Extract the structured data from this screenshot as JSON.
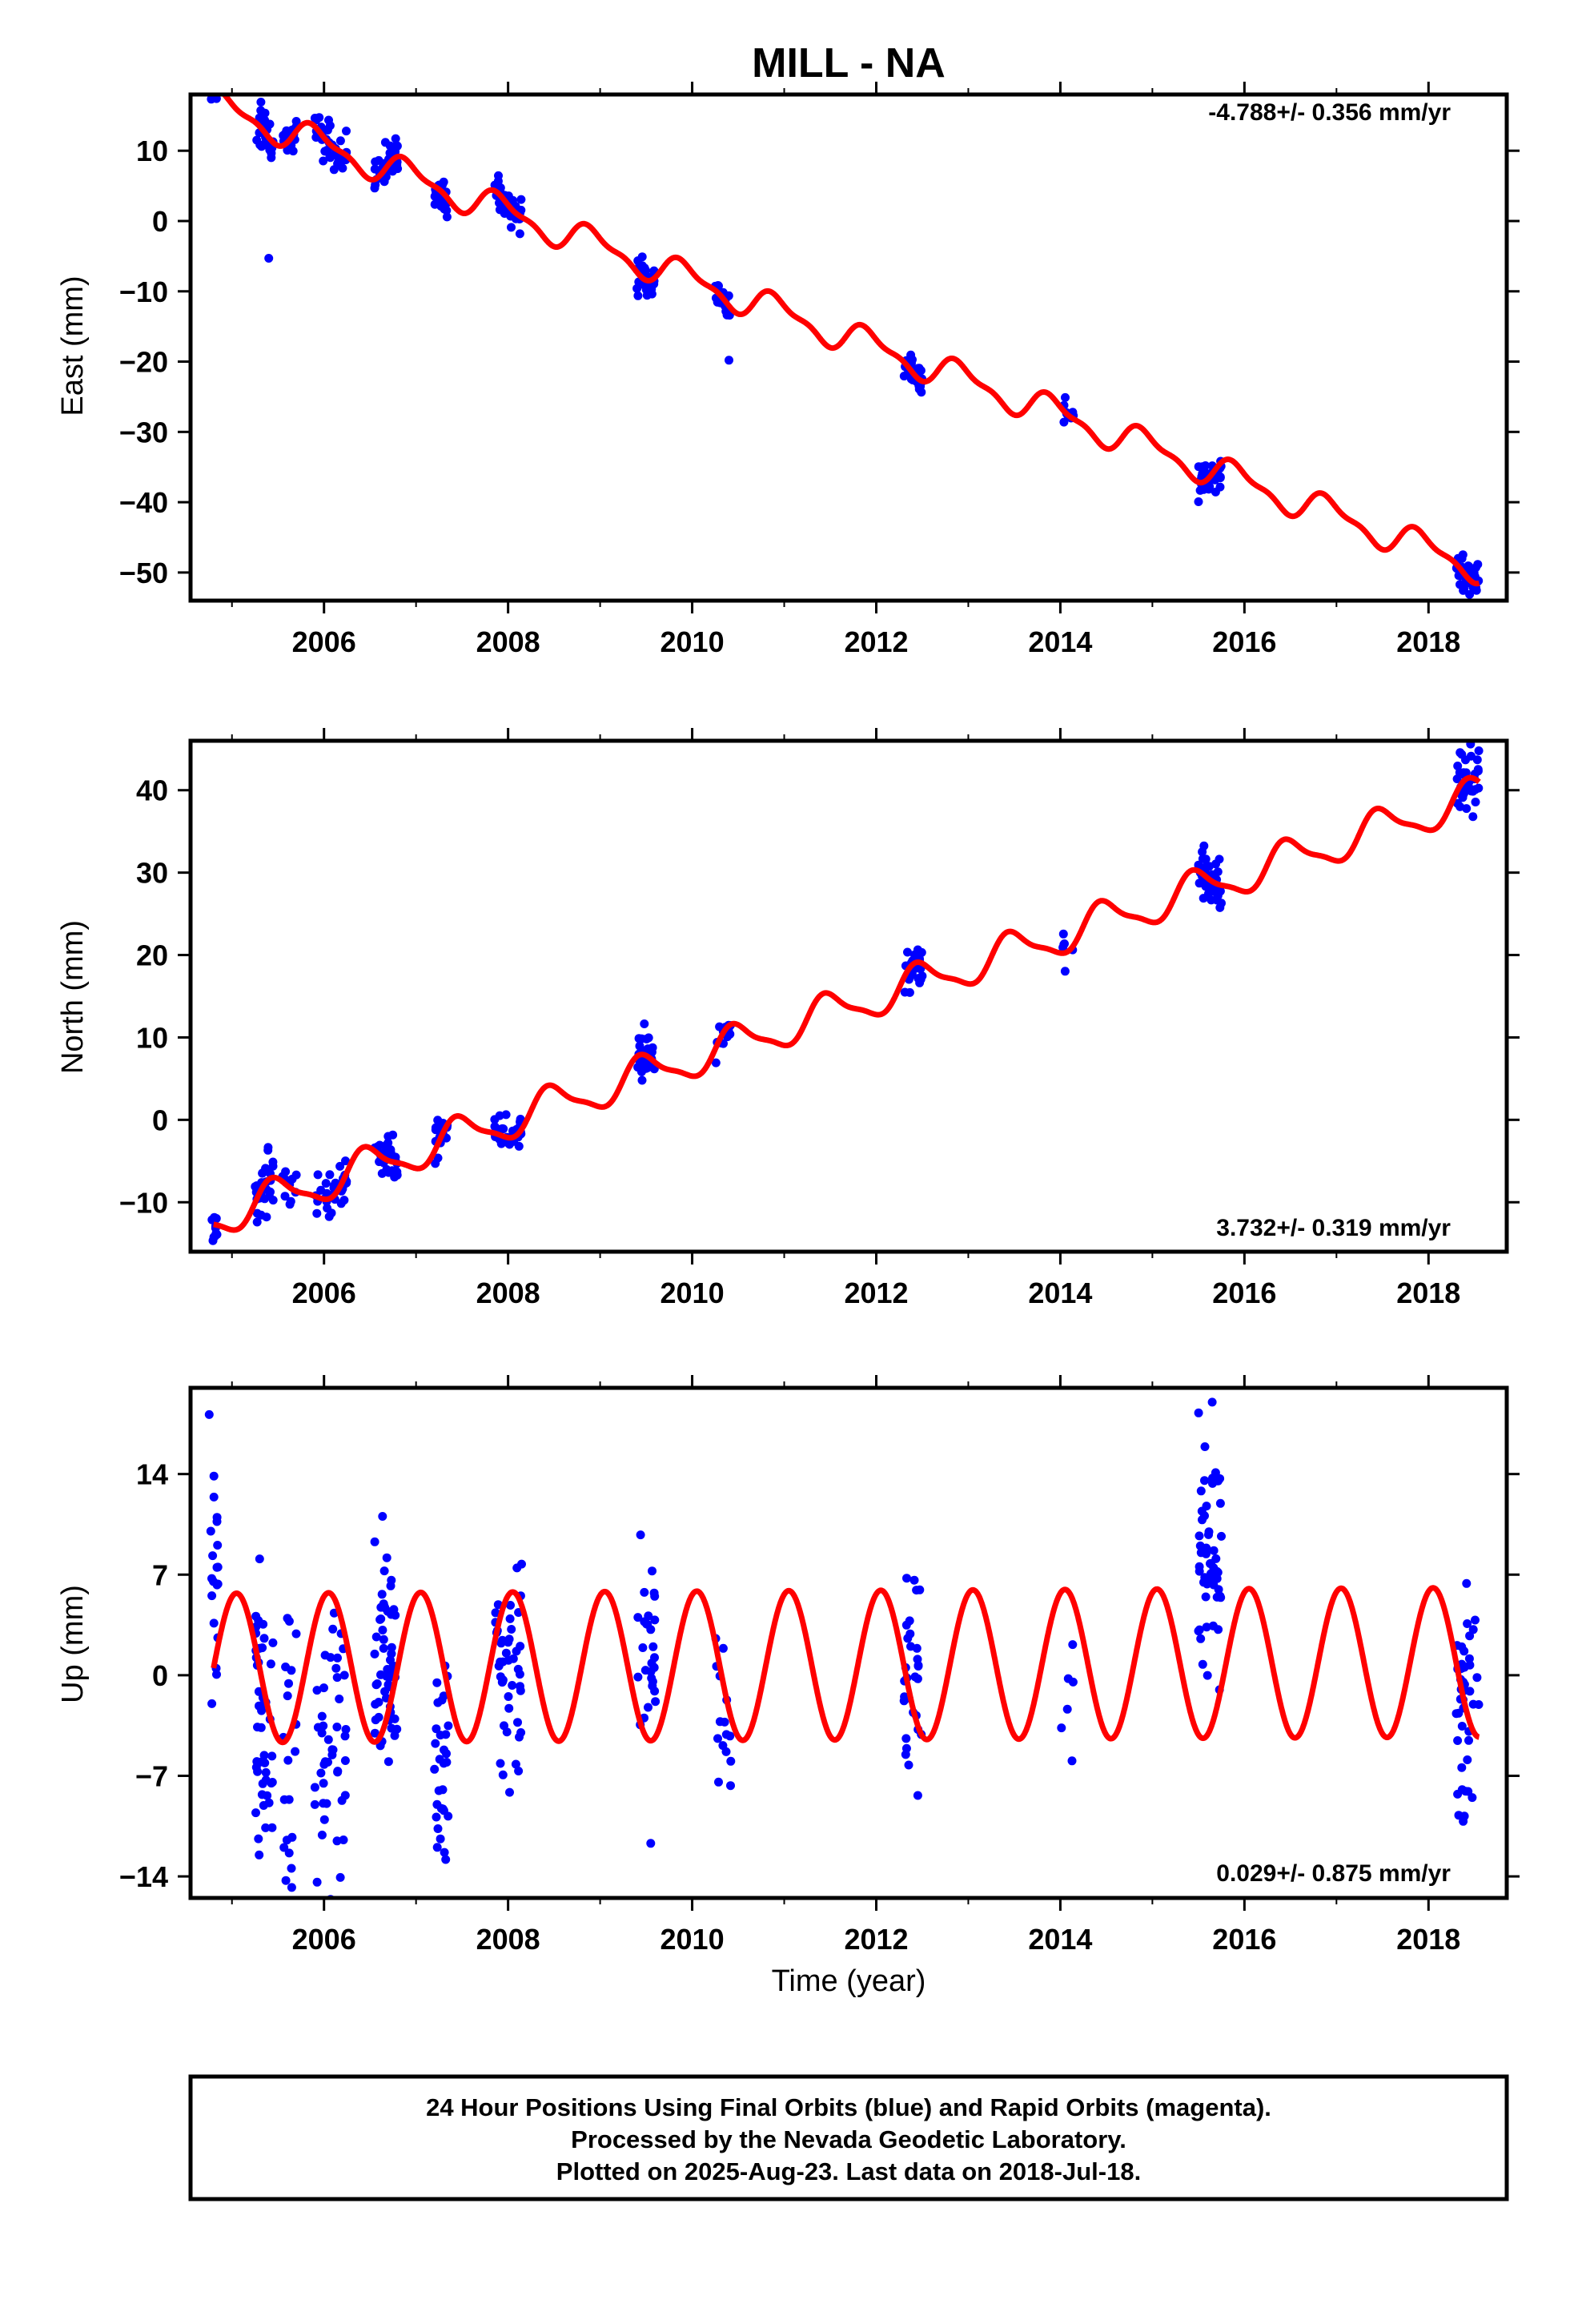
{
  "title": "MILL - NA",
  "x_axis_label": "Time (year)",
  "footer": {
    "lines": [
      "24 Hour Positions Using Final Orbits (blue) and Rapid Orbits (magenta).",
      "Processed by the Nevada Geodetic Laboratory.",
      "Plotted on 2025-Aug-23. Last data on 2018-Jul-18."
    ]
  },
  "colors": {
    "data": "#0000ff",
    "model": "#ff0000",
    "frame": "#000000"
  },
  "chart_data": [
    {
      "type": "scatter",
      "name": "East",
      "ylabel": "East (mm)",
      "rate_text": "-4.788+/- 0.356 mm/yr",
      "rate_position": "top-right",
      "xlim": [
        2004.55,
        2018.85
      ],
      "ylim": [
        -54,
        18
      ],
      "x_ticks": [
        2006,
        2008,
        2010,
        2012,
        2014,
        2016,
        2018
      ],
      "x_tick_labels": [
        "2006",
        "2008",
        "2010",
        "2012",
        "2014",
        "2016",
        "2018"
      ],
      "y_ticks": [
        10,
        0,
        -10,
        -20,
        -30,
        -40,
        -50
      ],
      "y_tick_labels": [
        "10",
        "0",
        "−10",
        "−20",
        "−30",
        "−40",
        "−50"
      ],
      "model": {
        "ref_year": 2004.8,
        "offset": 16.5,
        "rate": -4.788,
        "annual_amp": 2.0,
        "annual_phase": 0.8,
        "semiannual_amp": 0.8,
        "semiannual_phase": 1.6
      },
      "clusters": [
        {
          "start": 2004.75,
          "end": 2004.85,
          "n": 14,
          "spread": 0.8
        },
        {
          "start": 2005.25,
          "end": 2005.45,
          "n": 30,
          "spread": 1.6
        },
        {
          "start": 2005.55,
          "end": 2005.7,
          "n": 18,
          "spread": 1.0
        },
        {
          "start": 2005.9,
          "end": 2006.25,
          "n": 40,
          "spread": 1.5
        },
        {
          "start": 2006.55,
          "end": 2006.8,
          "n": 40,
          "spread": 1.6
        },
        {
          "start": 2007.2,
          "end": 2007.35,
          "n": 22,
          "spread": 1.2
        },
        {
          "start": 2007.85,
          "end": 2008.15,
          "n": 40,
          "spread": 1.2
        },
        {
          "start": 2009.4,
          "end": 2009.6,
          "n": 30,
          "spread": 1.4
        },
        {
          "start": 2010.25,
          "end": 2010.42,
          "n": 20,
          "spread": 1.2
        },
        {
          "start": 2012.3,
          "end": 2012.5,
          "n": 30,
          "spread": 1.3
        },
        {
          "start": 2014.0,
          "end": 2014.15,
          "n": 10,
          "spread": 0.8
        },
        {
          "start": 2015.5,
          "end": 2015.75,
          "n": 40,
          "spread": 1.3
        },
        {
          "start": 2018.3,
          "end": 2018.55,
          "n": 40,
          "spread": 1.5
        }
      ],
      "outliers": [
        {
          "x": 2005.4,
          "y": -5.3
        },
        {
          "x": 2010.4,
          "y": -19.8
        }
      ]
    },
    {
      "type": "scatter",
      "name": "North",
      "ylabel": "North (mm)",
      "rate_text": "3.732+/- 0.319 mm/yr",
      "rate_position": "bottom-right",
      "xlim": [
        2004.55,
        2018.85
      ],
      "ylim": [
        -16,
        46
      ],
      "x_ticks": [
        2006,
        2008,
        2010,
        2012,
        2014,
        2016,
        2018
      ],
      "x_tick_labels": [
        "2006",
        "2008",
        "2010",
        "2012",
        "2014",
        "2016",
        "2018"
      ],
      "y_ticks": [
        40,
        30,
        20,
        10,
        0,
        -10
      ],
      "y_tick_labels": [
        "40",
        "30",
        "20",
        "10",
        "0",
        "−10"
      ],
      "model": {
        "ref_year": 2004.8,
        "offset": -12.0,
        "rate": 3.732,
        "annual_amp": 2.2,
        "annual_phase": 3.6,
        "semiannual_amp": 0.6,
        "semiannual_phase": 0.5
      },
      "clusters": [
        {
          "start": 2004.75,
          "end": 2004.85,
          "n": 10,
          "spread": 1.0
        },
        {
          "start": 2005.25,
          "end": 2005.45,
          "n": 30,
          "spread": 2.0
        },
        {
          "start": 2005.55,
          "end": 2005.7,
          "n": 15,
          "spread": 1.2
        },
        {
          "start": 2005.9,
          "end": 2006.25,
          "n": 35,
          "spread": 1.3
        },
        {
          "start": 2006.55,
          "end": 2006.8,
          "n": 35,
          "spread": 1.4
        },
        {
          "start": 2007.2,
          "end": 2007.35,
          "n": 18,
          "spread": 1.2
        },
        {
          "start": 2007.85,
          "end": 2008.15,
          "n": 35,
          "spread": 1.1
        },
        {
          "start": 2009.4,
          "end": 2009.6,
          "n": 28,
          "spread": 1.5
        },
        {
          "start": 2010.25,
          "end": 2010.42,
          "n": 15,
          "spread": 1.2
        },
        {
          "start": 2012.3,
          "end": 2012.5,
          "n": 25,
          "spread": 1.6
        },
        {
          "start": 2014.0,
          "end": 2014.15,
          "n": 6,
          "spread": 1.2
        },
        {
          "start": 2015.5,
          "end": 2015.75,
          "n": 40,
          "spread": 1.6
        },
        {
          "start": 2018.3,
          "end": 2018.55,
          "n": 40,
          "spread": 2.0
        }
      ],
      "outliers": []
    },
    {
      "type": "scatter",
      "name": "Up",
      "ylabel": "Up (mm)",
      "rate_text": "0.029+/- 0.875 mm/yr",
      "rate_position": "bottom-right",
      "xlim": [
        2004.55,
        2018.85
      ],
      "ylim": [
        -15.5,
        20
      ],
      "x_ticks": [
        2006,
        2008,
        2010,
        2012,
        2014,
        2016,
        2018
      ],
      "x_tick_labels": [
        "2006",
        "2008",
        "2010",
        "2012",
        "2014",
        "2016",
        "2018"
      ],
      "y_ticks": [
        14,
        7,
        0,
        -7,
        -14
      ],
      "y_tick_labels": [
        "14",
        "7",
        "0",
        "−7",
        "−14"
      ],
      "model": {
        "ref_year": 2004.8,
        "offset": 0.5,
        "rate": 0.029,
        "annual_amp": 5.2,
        "annual_phase": 0.0,
        "semiannual_amp": 0.0,
        "semiannual_phase": 0.0
      },
      "clusters": [
        {
          "start": 2004.75,
          "end": 2004.85,
          "n": 20,
          "spread": 4.5,
          "center": 7
        },
        {
          "start": 2005.25,
          "end": 2005.45,
          "n": 45,
          "spread": 5.0,
          "center": -3
        },
        {
          "start": 2005.55,
          "end": 2005.7,
          "n": 20,
          "spread": 5.0,
          "center": -5
        },
        {
          "start": 2005.9,
          "end": 2006.25,
          "n": 45,
          "spread": 4.5,
          "center": -5
        },
        {
          "start": 2006.55,
          "end": 2006.8,
          "n": 55,
          "spread": 4.0,
          "center": 2
        },
        {
          "start": 2007.2,
          "end": 2007.35,
          "n": 30,
          "spread": 4.5,
          "center": -7
        },
        {
          "start": 2007.85,
          "end": 2008.15,
          "n": 45,
          "spread": 4.5,
          "center": 1
        },
        {
          "start": 2009.4,
          "end": 2009.6,
          "n": 28,
          "spread": 4.0,
          "center": 2
        },
        {
          "start": 2010.25,
          "end": 2010.42,
          "n": 15,
          "spread": 3.5,
          "center": -3
        },
        {
          "start": 2012.3,
          "end": 2012.5,
          "n": 30,
          "spread": 4.0,
          "center": 0
        },
        {
          "start": 2014.0,
          "end": 2014.15,
          "n": 6,
          "spread": 3.5,
          "center": -1
        },
        {
          "start": 2015.5,
          "end": 2015.75,
          "n": 55,
          "spread": 4.5,
          "center": 8
        },
        {
          "start": 2018.3,
          "end": 2018.55,
          "n": 45,
          "spread": 4.0,
          "center": -2
        }
      ],
      "outliers": [
        {
          "x": 2009.55,
          "y": -11.7
        },
        {
          "x": 2015.65,
          "y": 19.0
        }
      ]
    }
  ]
}
